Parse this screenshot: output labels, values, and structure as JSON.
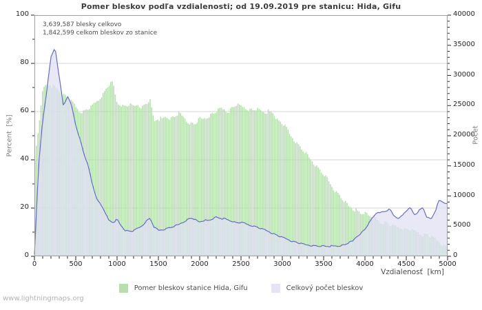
{
  "title": "Pomer bleskov podľa vzdialenosti; od 19.09.2019 pre stanicu: Hida, Gifu",
  "annotations": {
    "total_strokes": "3,639,587 blesky celkovo",
    "station_strokes": "1,842,599 celkom bleskov zo stanice"
  },
  "axes": {
    "left": {
      "label": "Percent  [%]",
      "ticks": [
        0,
        20,
        40,
        60,
        80,
        100
      ],
      "minor_step": 10,
      "range": [
        0,
        100
      ]
    },
    "right": {
      "label": "Počet",
      "ticks": [
        0,
        5000,
        10000,
        15000,
        20000,
        25000,
        30000,
        35000,
        40000
      ],
      "minor_step": 1000,
      "range": [
        0,
        40000
      ]
    },
    "x": {
      "label": "Vzdialenosť  [km]",
      "ticks": [
        0,
        500,
        1000,
        1500,
        2000,
        2500,
        3000,
        3500,
        4000,
        4500,
        5000
      ],
      "minor_step": 100,
      "range": [
        0,
        5000
      ]
    }
  },
  "legend": [
    {
      "label": "Pomer bleskov stanice Hida, Gifu",
      "color": "#b5dfac"
    },
    {
      "label": "Celkový počet bleskov",
      "color": "#e4e4f4"
    }
  ],
  "footer": "www.lightningmaps.org",
  "colors": {
    "bar_green": "#b5dfac",
    "count_fill": "#e4e4f4",
    "count_line": "#656cc9",
    "grid": "#d4d4d4",
    "plot_border": "#9e9e9e",
    "tick": "#222222",
    "title_text": "#3a3a3a",
    "muted_text": "#4d4d4d"
  },
  "chart_data": {
    "type": "area",
    "title": "Pomer bleskov podľa vzdialenosti; od 19.09.2019 pre stanicu: Hida, Gifu",
    "xlabel": "Vzdialenosť [km]",
    "ylabel_left": "Percent [%]",
    "ylabel_right": "Počet",
    "xlim": [
      0,
      5000
    ],
    "ylim_left": [
      0,
      100
    ],
    "ylim_right": [
      0,
      40000
    ],
    "grid": "horizontal",
    "legend_position": "bottom",
    "x_step_km": 50,
    "x_km": [
      0,
      50,
      100,
      150,
      200,
      250,
      300,
      350,
      400,
      450,
      500,
      550,
      600,
      650,
      700,
      750,
      800,
      850,
      900,
      950,
      1000,
      1050,
      1100,
      1150,
      1200,
      1250,
      1300,
      1350,
      1400,
      1450,
      1500,
      1550,
      1600,
      1650,
      1700,
      1750,
      1800,
      1850,
      1900,
      1950,
      2000,
      2050,
      2100,
      2150,
      2200,
      2250,
      2300,
      2350,
      2400,
      2450,
      2500,
      2550,
      2600,
      2650,
      2700,
      2750,
      2800,
      2850,
      2900,
      2950,
      3000,
      3050,
      3100,
      3150,
      3200,
      3250,
      3300,
      3350,
      3400,
      3450,
      3500,
      3550,
      3600,
      3650,
      3700,
      3750,
      3800,
      3850,
      3900,
      3950,
      4000,
      4050,
      4100,
      4150,
      4200,
      4250,
      4300,
      4350,
      4400,
      4450,
      4500,
      4550,
      4600,
      4650,
      4700,
      4750,
      4800,
      4850,
      4900,
      4950,
      5000
    ],
    "series": [
      {
        "name": "Pomer bleskov stanice Hida, Gifu",
        "type": "bar",
        "axis": "left",
        "unit": "%",
        "values": [
          38,
          52,
          69,
          71,
          71,
          70,
          69,
          67,
          66,
          64,
          62,
          60,
          60,
          61,
          62,
          64,
          66,
          68,
          71,
          72,
          64,
          63,
          62,
          63,
          62,
          63,
          62,
          63,
          65,
          56,
          57,
          57,
          58,
          57,
          58,
          59,
          58,
          56,
          55,
          55,
          57,
          57,
          58,
          59,
          60,
          61,
          61,
          60,
          62,
          63,
          62,
          62,
          61,
          61,
          61,
          60,
          60,
          60,
          59,
          56,
          55,
          53,
          50,
          48,
          46,
          44,
          42,
          40,
          38,
          36,
          34,
          32,
          29,
          27,
          25,
          23,
          21,
          20,
          19,
          18,
          18,
          17,
          16,
          15,
          14,
          14,
          13,
          12,
          12,
          12,
          11,
          11,
          10,
          10,
          9,
          9,
          8,
          7,
          6,
          5,
          3.5
        ]
      },
      {
        "name": "Celkový počet bleskov",
        "type": "area",
        "axis": "right",
        "unit": "blesky",
        "values": [
          300,
          15000,
          22500,
          27500,
          33000,
          34700,
          29800,
          25000,
          26500,
          25000,
          21800,
          19500,
          17000,
          15000,
          12000,
          9800,
          8600,
          7500,
          5900,
          5600,
          6100,
          5000,
          4300,
          4100,
          4200,
          4600,
          5000,
          5800,
          6300,
          4800,
          4300,
          4400,
          4600,
          4800,
          5000,
          5300,
          5700,
          6100,
          6400,
          6000,
          5700,
          6000,
          5900,
          6200,
          6500,
          6300,
          6200,
          6000,
          5800,
          5500,
          5600,
          5400,
          5200,
          5000,
          4800,
          4500,
          4300,
          4000,
          3700,
          3400,
          3100,
          2900,
          2600,
          2400,
          2200,
          2000,
          1900,
          1800,
          1750,
          1700,
          1700,
          1650,
          1700,
          1700,
          1750,
          1900,
          2200,
          2500,
          3300,
          3800,
          4500,
          5500,
          6500,
          7400,
          7300,
          7500,
          7800,
          6700,
          6400,
          6700,
          7600,
          8000,
          6900,
          7500,
          8100,
          6500,
          6100,
          7500,
          9300,
          8900,
          8800
        ]
      }
    ]
  }
}
